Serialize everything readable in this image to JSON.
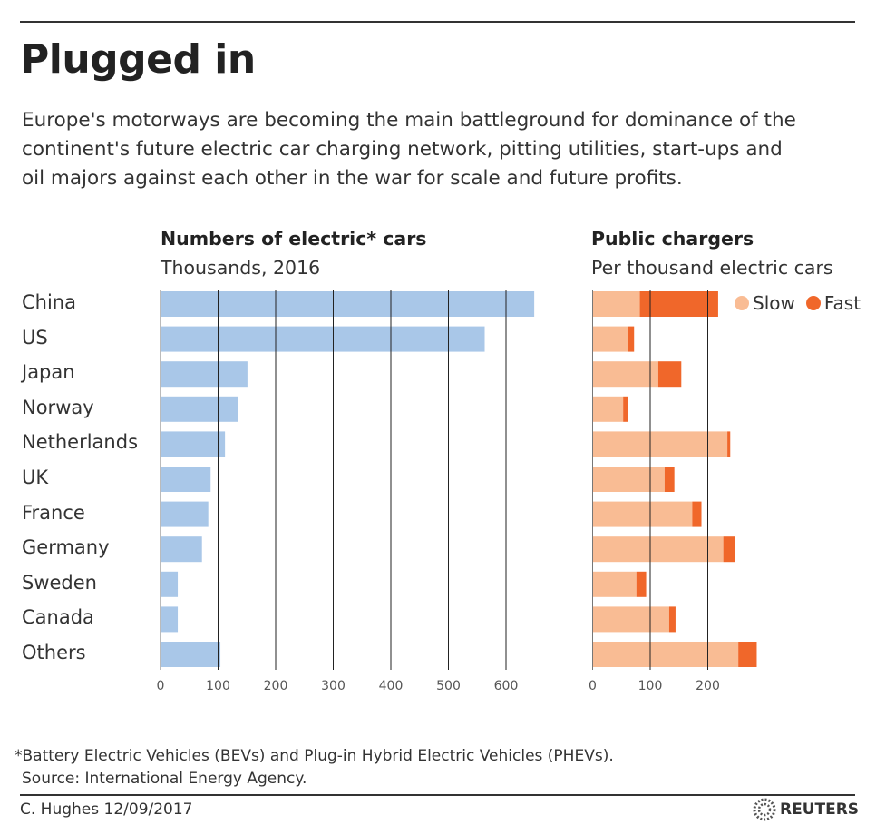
{
  "title": "Plugged in",
  "subtitle": [
    "Europe's motorways are becoming the main battleground for dominance of the",
    "continent's future electric car charging network, pitting utilities, start-ups and",
    "oil majors against each other in the war for scale and future profits."
  ],
  "chart_data": [
    {
      "type": "bar",
      "orientation": "horizontal",
      "title": "Numbers of electric* cars",
      "subtitle": "Thousands, 2016",
      "categories": [
        "China",
        "US",
        "Japan",
        "Norway",
        "Netherlands",
        "UK",
        "France",
        "Germany",
        "Sweden",
        "Canada",
        "Others"
      ],
      "values": [
        649,
        563,
        151,
        134,
        112,
        87,
        83,
        72,
        30,
        30,
        104
      ],
      "xlim": [
        0,
        650
      ],
      "xticks": [
        "0",
        "100",
        "200",
        "300",
        "400",
        "500",
        "600"
      ],
      "grid": true,
      "color": "#a9c7e8"
    },
    {
      "type": "bar",
      "orientation": "horizontal",
      "stacked": true,
      "title": "Public chargers",
      "subtitle": "Per thousand electric cars",
      "categories": [
        "China",
        "US",
        "Japan",
        "Norway",
        "Netherlands",
        "UK",
        "France",
        "Germany",
        "Sweden",
        "Canada",
        "Others"
      ],
      "series": [
        {
          "name": "Slow",
          "color": "#f9bc94",
          "values": [
            82,
            62,
            114,
            53,
            234,
            125,
            173,
            227,
            76,
            133,
            253
          ]
        },
        {
          "name": "Fast",
          "color": "#f0672a",
          "values": [
            136,
            10,
            40,
            8,
            5,
            17,
            16,
            20,
            17,
            11,
            32
          ]
        }
      ],
      "xlim": [
        0,
        290
      ],
      "xticks": [
        "0",
        "100",
        "200"
      ],
      "grid": true,
      "legend": "top-right"
    }
  ],
  "footnote": "*Battery Electric Vehicles (BEVs) and Plug-in Hybrid Electric Vehicles (PHEVs).",
  "source": "Source: International Energy Agency.",
  "credit": "C. Hughes 12/09/2017",
  "logo": "REUTERS"
}
